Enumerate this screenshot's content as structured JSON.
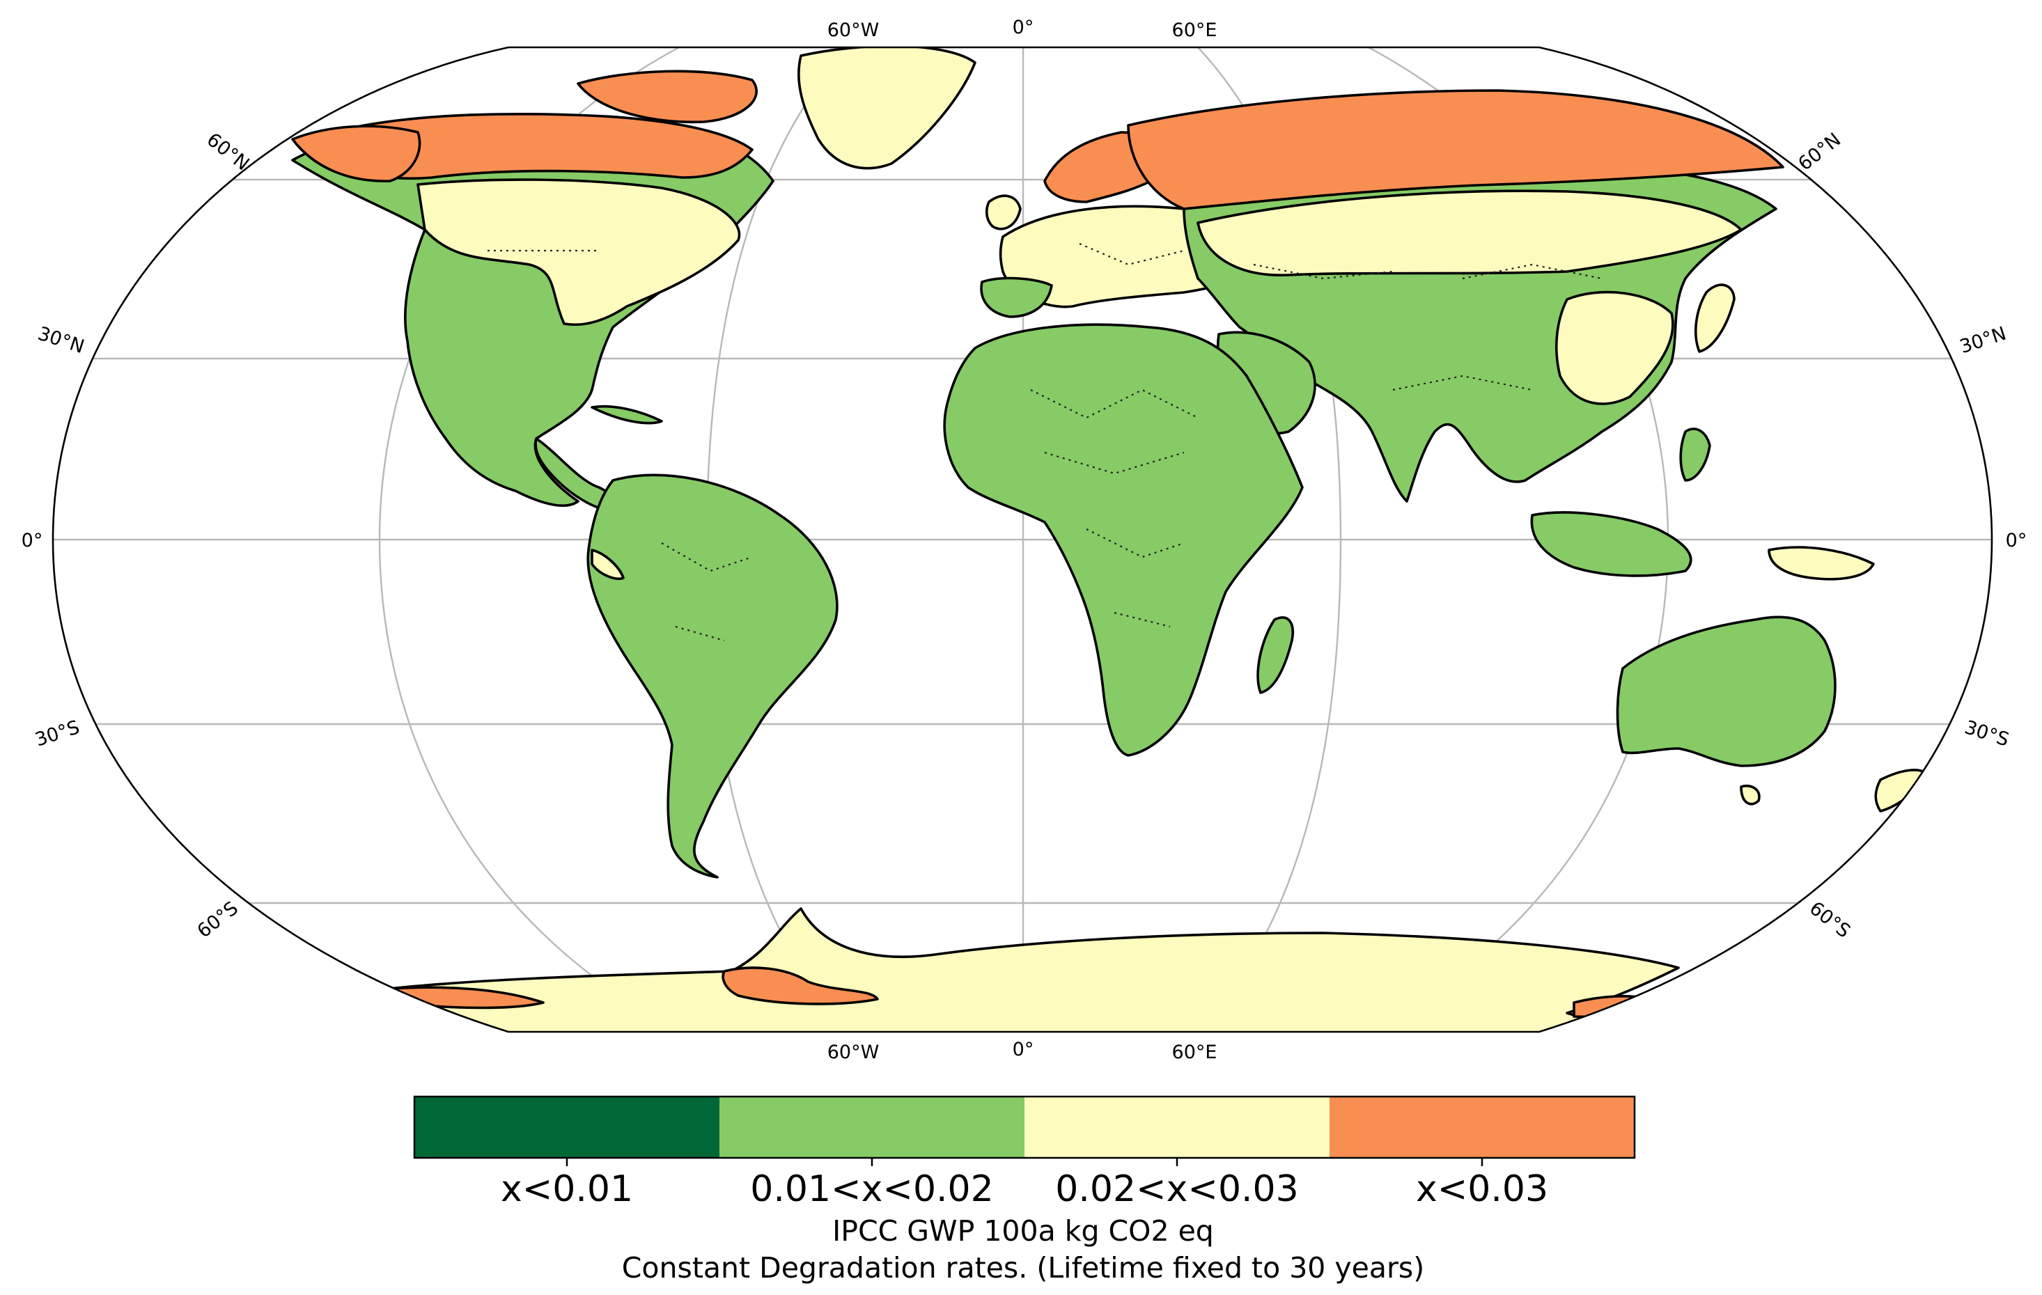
{
  "map": {
    "projection": "Robinson",
    "colors": {
      "dark_green": "#006837",
      "green": "#86cb66",
      "yellow": "#fefbbf",
      "orange": "#f98e52",
      "ocean": "#ffffff",
      "gridline": "#b8b8b8",
      "coast": "#000000"
    },
    "meridian_labels": [
      "60°W",
      "0°",
      "60°E"
    ],
    "parallel_labels": [
      "60°N",
      "30°N",
      "0°",
      "30°S",
      "60°S"
    ]
  },
  "legend": {
    "categories": [
      {
        "label": "x<0.01",
        "color": "#006837"
      },
      {
        "label": "0.01<x<0.02",
        "color": "#86cb66"
      },
      {
        "label": "0.02<x<0.03",
        "color": "#fefbbf"
      },
      {
        "label": "x<0.03",
        "color": "#f98e52"
      }
    ]
  },
  "caption": {
    "line1": "IPCC GWP 100a kg CO2 eq",
    "line2": "Constant Degradation rates. (Lifetime fixed to 30 years)"
  }
}
